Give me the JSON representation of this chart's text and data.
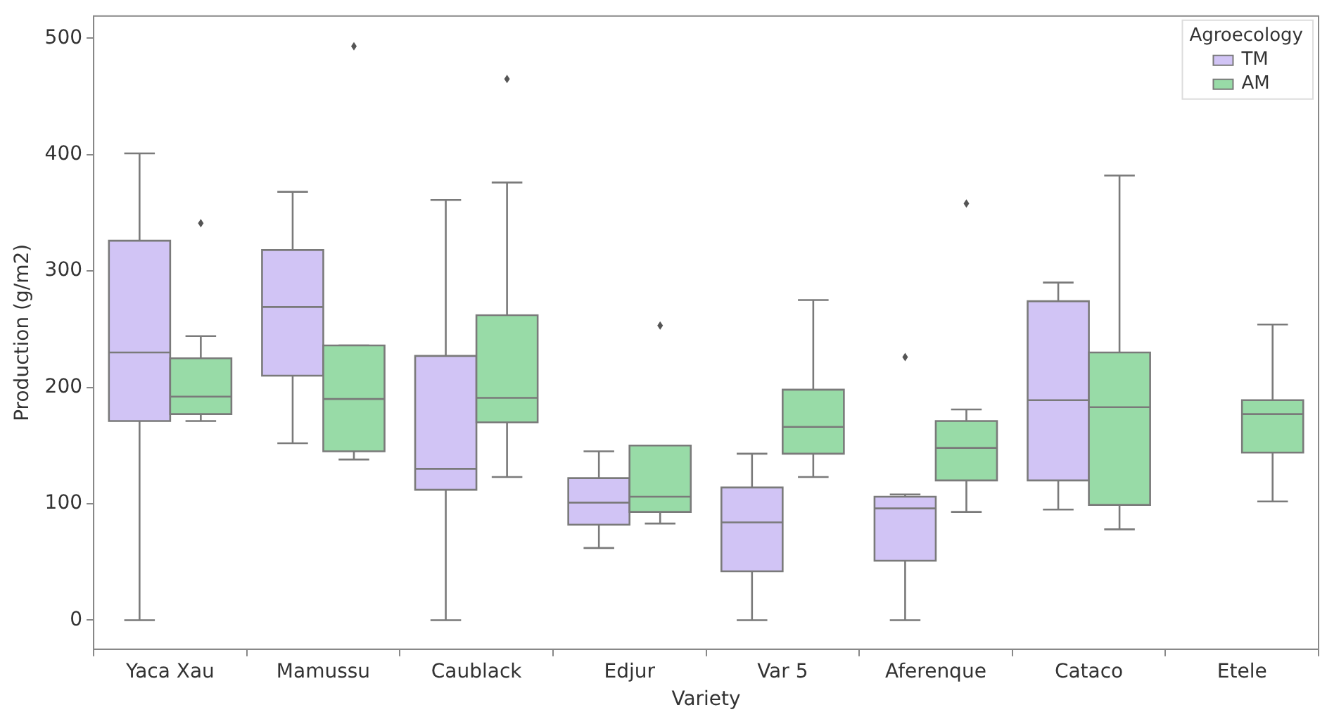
{
  "chart_data": {
    "type": "box",
    "xlabel": "Variety",
    "ylabel": "Production (g/m2)",
    "legend_title": "Agroecology",
    "legend": "top right",
    "grid": false,
    "categories": [
      "Yaca Xau",
      "Mamussu",
      "Caublack",
      "Edjur",
      "Var 5",
      "Aferenque",
      "Cataco",
      "Etele"
    ],
    "ylim": [
      -25,
      519
    ],
    "yticks": [
      0,
      100,
      200,
      300,
      400,
      500
    ],
    "series": [
      {
        "name": "TM",
        "color": "#d1c4f5",
        "boxes": [
          {
            "low": 0,
            "q1": 171,
            "median": 230,
            "q3": 326,
            "high": 401
          },
          {
            "low": 152,
            "q1": 210,
            "median": 269,
            "q3": 318,
            "high": 368
          },
          {
            "low": 0,
            "q1": 112,
            "median": 130,
            "q3": 227,
            "high": 361
          },
          {
            "low": 62,
            "q1": 82,
            "median": 101,
            "q3": 122,
            "high": 145
          },
          {
            "low": 0,
            "q1": 42,
            "median": 84,
            "q3": 114,
            "high": 143
          },
          {
            "low": 0,
            "q1": 51,
            "median": 96,
            "q3": 106,
            "high": 108,
            "outliers": [
              226
            ]
          },
          {
            "low": 95,
            "q1": 120,
            "median": 189,
            "q3": 274,
            "high": 290
          },
          null
        ]
      },
      {
        "name": "AM",
        "color": "#98dba7",
        "boxes": [
          {
            "low": 171,
            "q1": 177,
            "median": 192,
            "q3": 225,
            "high": 244,
            "outliers": [
              341
            ]
          },
          {
            "low": 138,
            "q1": 145,
            "median": 190,
            "q3": 236,
            "high": 236,
            "outliers": [
              493
            ]
          },
          {
            "low": 123,
            "q1": 170,
            "median": 191,
            "q3": 262,
            "high": 376,
            "outliers": [
              465
            ]
          },
          {
            "low": 83,
            "q1": 93,
            "median": 106,
            "q3": 150,
            "high": 150,
            "outliers": [
              253
            ]
          },
          {
            "low": 123,
            "q1": 143,
            "median": 166,
            "q3": 198,
            "high": 275
          },
          {
            "low": 93,
            "q1": 120,
            "median": 148,
            "q3": 171,
            "high": 181,
            "outliers": [
              358
            ]
          },
          {
            "low": 78,
            "q1": 99,
            "median": 183,
            "q3": 230,
            "high": 382
          },
          {
            "low": 102,
            "q1": 144,
            "median": 177,
            "q3": 189,
            "high": 254
          }
        ]
      }
    ]
  }
}
